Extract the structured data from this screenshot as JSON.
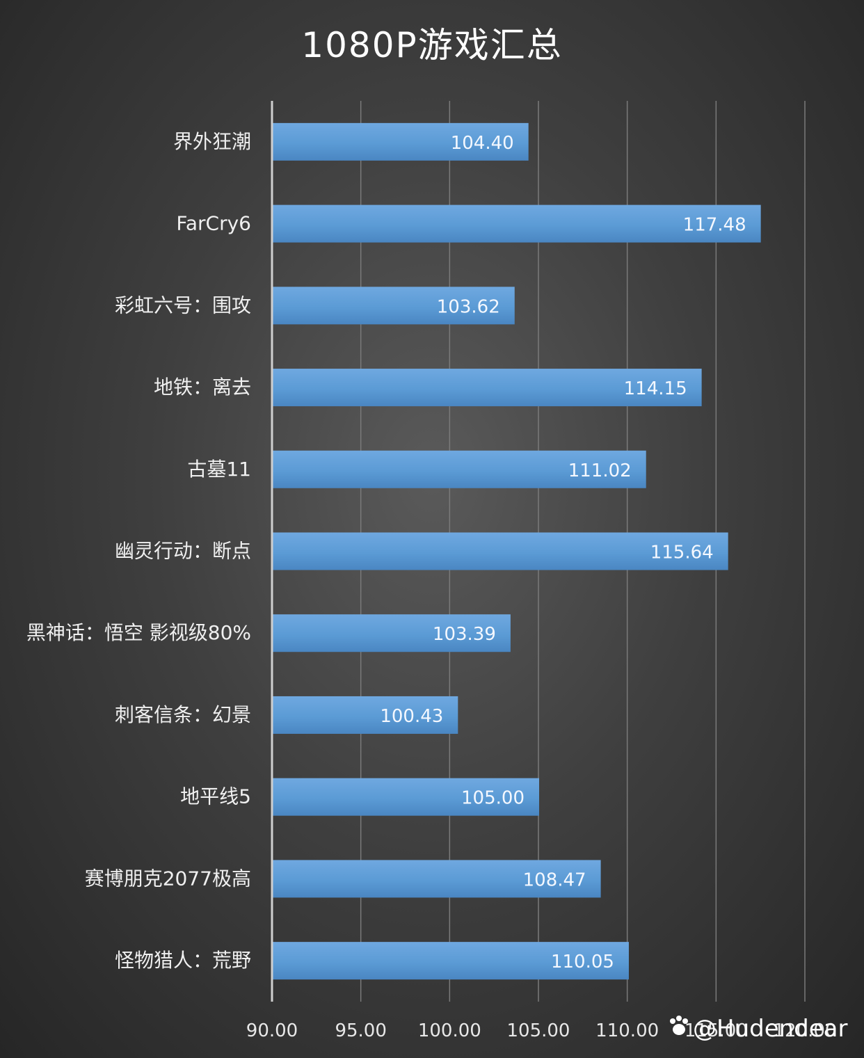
{
  "chart_data": {
    "type": "bar",
    "orientation": "horizontal",
    "title": "1080P游戏汇总",
    "categories": [
      "界外狂潮",
      "FarCry6",
      "彩虹六号：围攻",
      "地铁：离去",
      "古墓11",
      "幽灵行动：断点",
      "黑神话：悟空 影视级80%",
      "刺客信条：幻景",
      "地平线5",
      "赛博朋克2077极高",
      "怪物猎人：荒野"
    ],
    "values": [
      104.4,
      117.48,
      103.62,
      114.15,
      111.02,
      115.64,
      103.39,
      100.43,
      105.0,
      108.47,
      110.05
    ],
    "value_labels": [
      "104.40",
      "117.48",
      "103.62",
      "114.15",
      "111.02",
      "115.64",
      "103.39",
      "100.43",
      "105.00",
      "108.47",
      "110.05"
    ],
    "xlim": [
      90,
      120
    ],
    "xticks": [
      "90.00",
      "95.00",
      "100.00",
      "105.00",
      "110.00",
      "115.00",
      "120.00"
    ],
    "xtick_values": [
      90,
      95,
      100,
      105,
      110,
      115,
      120
    ],
    "grid": true,
    "bar_color": "#5b9bd5",
    "xlabel": "",
    "ylabel": ""
  },
  "watermark": "@Hudendear"
}
